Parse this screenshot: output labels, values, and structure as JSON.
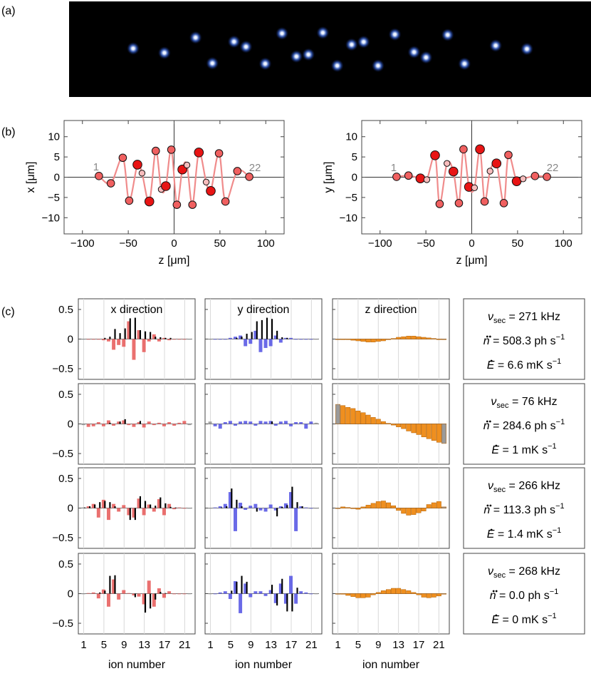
{
  "panel_labels": [
    "(a)",
    "(b)",
    "(c)"
  ],
  "image_a": {
    "background": "#000000",
    "spot_color": "#6fa0ff",
    "spot_count": 22
  },
  "chart_data": [
    {
      "type": "scatter",
      "id": "b-left",
      "title": "",
      "xlabel": "z [μm]",
      "ylabel": "x [μm]",
      "xlim": [
        -120,
        120
      ],
      "ylim": [
        -14,
        14
      ],
      "xticks": [
        -100,
        -50,
        0,
        50,
        100
      ],
      "yticks": [
        -10,
        -5,
        0,
        5,
        10
      ],
      "start_label": "1",
      "end_label": "22",
      "points": [
        {
          "z": -82,
          "v": 0.3,
          "shade": "mid"
        },
        {
          "z": -69,
          "v": -1.5,
          "shade": "mid"
        },
        {
          "z": -56,
          "v": 4.8,
          "shade": "mid"
        },
        {
          "z": -49,
          "v": -5.8,
          "shade": "mid"
        },
        {
          "z": -40,
          "v": 3.1,
          "shade": "dark"
        },
        {
          "z": -35,
          "v": 1.0,
          "shade": "light"
        },
        {
          "z": -27,
          "v": -6.0,
          "shade": "dark"
        },
        {
          "z": -20,
          "v": 6.5,
          "shade": "mid"
        },
        {
          "z": -14,
          "v": -3.0,
          "shade": "light"
        },
        {
          "z": -9,
          "v": -2.2,
          "shade": "dark"
        },
        {
          "z": -3,
          "v": 6.8,
          "shade": "mid"
        },
        {
          "z": 3,
          "v": -6.8,
          "shade": "mid"
        },
        {
          "z": 9,
          "v": 1.9,
          "shade": "dark"
        },
        {
          "z": 14,
          "v": 3.0,
          "shade": "light"
        },
        {
          "z": 20,
          "v": -6.8,
          "shade": "mid"
        },
        {
          "z": 27,
          "v": 6.1,
          "shade": "dark"
        },
        {
          "z": 35,
          "v": -1.2,
          "shade": "light"
        },
        {
          "z": 40,
          "v": -3.4,
          "shade": "dark"
        },
        {
          "z": 49,
          "v": 5.9,
          "shade": "mid"
        },
        {
          "z": 56,
          "v": -6.0,
          "shade": "mid"
        },
        {
          "z": 69,
          "v": 1.5,
          "shade": "mid"
        },
        {
          "z": 82,
          "v": 0.1,
          "shade": "mid"
        }
      ]
    },
    {
      "type": "scatter",
      "id": "b-right",
      "title": "",
      "xlabel": "z [μm]",
      "ylabel": "y [μm]",
      "xlim": [
        -120,
        120
      ],
      "ylim": [
        -14,
        14
      ],
      "xticks": [
        -100,
        -50,
        0,
        50,
        100
      ],
      "yticks": [
        -10,
        -5,
        0,
        5,
        10
      ],
      "start_label": "1",
      "end_label": "22",
      "points": [
        {
          "z": -82,
          "v": 0.1,
          "shade": "mid"
        },
        {
          "z": -69,
          "v": 0.4,
          "shade": "mid"
        },
        {
          "z": -56,
          "v": -0.3,
          "shade": "dark"
        },
        {
          "z": -49,
          "v": -0.6,
          "shade": "light"
        },
        {
          "z": -40,
          "v": 5.4,
          "shade": "dark"
        },
        {
          "z": -35,
          "v": -6.6,
          "shade": "mid"
        },
        {
          "z": -27,
          "v": 3.4,
          "shade": "light"
        },
        {
          "z": -20,
          "v": 1.4,
          "shade": "dark"
        },
        {
          "z": -14,
          "v": -6.4,
          "shade": "mid"
        },
        {
          "z": -9,
          "v": 6.9,
          "shade": "mid"
        },
        {
          "z": -3,
          "v": -2.4,
          "shade": "dark"
        },
        {
          "z": 3,
          "v": -2.6,
          "shade": "light"
        },
        {
          "z": 9,
          "v": 6.9,
          "shade": "dark"
        },
        {
          "z": 14,
          "v": -6.0,
          "shade": "mid"
        },
        {
          "z": 20,
          "v": 1.5,
          "shade": "light"
        },
        {
          "z": 27,
          "v": 3.4,
          "shade": "dark"
        },
        {
          "z": 35,
          "v": -6.4,
          "shade": "mid"
        },
        {
          "z": 40,
          "v": 5.5,
          "shade": "mid"
        },
        {
          "z": 49,
          "v": -1.0,
          "shade": "dark"
        },
        {
          "z": 56,
          "v": -0.4,
          "shade": "light"
        },
        {
          "z": 69,
          "v": 0.3,
          "shade": "mid"
        },
        {
          "z": 82,
          "v": 0.1,
          "shade": "mid"
        }
      ]
    }
  ],
  "mode_grid": {
    "type": "bar",
    "xlabel": "ion number",
    "xticks": [
      1,
      5,
      9,
      13,
      17,
      21
    ],
    "yticks": [
      -0.5,
      0,
      0.5
    ],
    "ylim": [
      -0.68,
      0.68
    ],
    "column_titles": [
      "x direction",
      "y direction",
      "z direction"
    ],
    "colors": {
      "x": "#e8605f",
      "y": "#5a5ae4",
      "z": "#ef8f1f",
      "reference": "#000000",
      "edge": "#9a9a9a"
    },
    "rows": [
      {
        "info": {
          "nu_label": "ν",
          "nu_sub": "sec",
          "nu_value": "= 271 kHz",
          "ndot_sym": "n",
          "ndot_value": "= 508.3 ph s",
          "edot_sym": "E",
          "edot_value": "= 6.6 mK s",
          "exp": "−1"
        },
        "x": {
          "main": [
            0,
            0,
            0,
            0,
            -0.02,
            -0.04,
            -0.18,
            -0.1,
            -0.13,
            0.3,
            -0.35,
            0.15,
            -0.22,
            -0.04,
            0.08,
            -0.04,
            0.02,
            -0.02,
            0,
            0,
            0,
            0
          ],
          "ref": [
            0,
            0,
            0,
            0,
            0.02,
            0.04,
            0.17,
            0.1,
            0.18,
            0.35,
            0.36,
            0.15,
            0.13,
            0.12,
            0.04,
            0.03,
            0.02,
            0.02,
            0,
            0,
            0,
            0
          ]
        },
        "y": {
          "main": [
            0,
            0,
            0,
            0,
            0.02,
            0.04,
            0.06,
            -0.12,
            -0.08,
            0.14,
            -0.22,
            -0.15,
            -0.12,
            0.06,
            -0.06,
            0.02,
            0.02,
            0,
            0,
            0,
            0,
            0
          ],
          "ref": [
            0,
            0,
            0,
            0,
            0,
            0.02,
            0.04,
            0.09,
            0.12,
            0.3,
            0.32,
            0.36,
            0.34,
            0.14,
            0.03,
            0.02,
            0,
            0,
            0,
            0,
            0,
            0
          ]
        },
        "z": {
          "main": [
            0,
            0,
            0,
            -0.02,
            -0.03,
            -0.04,
            -0.05,
            -0.05,
            -0.04,
            -0.03,
            -0.01,
            0.01,
            0.03,
            0.04,
            0.05,
            0.05,
            0.04,
            0.03,
            0.02,
            0.01,
            0,
            0
          ],
          "ref": [
            0,
            0,
            0,
            0,
            0,
            0,
            0,
            0,
            0,
            0,
            0,
            0,
            0,
            0,
            0,
            0,
            0,
            0,
            0,
            0,
            0,
            0
          ]
        }
      },
      {
        "info": {
          "nu_label": "ν",
          "nu_sub": "sec",
          "nu_value": "= 76 kHz",
          "ndot_sym": "n",
          "ndot_value": "= 284.6 ph s",
          "edot_sym": "E",
          "edot_value": "= 1 mK s",
          "exp": "−1"
        },
        "x": {
          "main": [
            -0.02,
            -0.05,
            -0.04,
            0.03,
            -0.04,
            0.06,
            -0.03,
            0.04,
            0.06,
            -0.02,
            -0.05,
            0.03,
            -0.06,
            0.04,
            -0.02,
            0.02,
            -0.04,
            0.03,
            -0.03,
            0.02,
            0.05,
            -0.02
          ],
          "ref": [
            0,
            0,
            0,
            0,
            0,
            0.02,
            0,
            0.04,
            0.08,
            0,
            0,
            0.05,
            0,
            0,
            0,
            0,
            0,
            0,
            0,
            0,
            0,
            0
          ]
        },
        "y": {
          "main": [
            0.04,
            -0.04,
            -0.08,
            0.03,
            0.05,
            -0.03,
            0.04,
            0.05,
            0.04,
            -0.03,
            0.05,
            0.04,
            0.05,
            -0.03,
            0.04,
            0.05,
            -0.04,
            0.03,
            0.03,
            -0.08,
            0.04,
            0.02
          ],
          "ref": [
            0,
            0,
            0,
            0,
            0,
            0,
            0,
            0,
            0,
            0,
            0,
            0,
            0.04,
            0,
            0,
            0,
            0,
            0,
            0,
            0,
            0,
            0
          ]
        },
        "z": {
          "main": [
            0.33,
            0.31,
            0.28,
            0.26,
            0.22,
            0.19,
            0.15,
            0.11,
            0.08,
            0.04,
            0.01,
            -0.02,
            -0.05,
            -0.08,
            -0.12,
            -0.15,
            -0.18,
            -0.22,
            -0.25,
            -0.28,
            -0.31,
            -0.33
          ],
          "ref": [
            0,
            0,
            0,
            0,
            0,
            0,
            0,
            0,
            0,
            0,
            0,
            0,
            0,
            0,
            0,
            0,
            0,
            0,
            0,
            0,
            0,
            0
          ]
        }
      },
      {
        "info": {
          "nu_label": "ν",
          "nu_sub": "sec",
          "nu_value": "= 266 kHz",
          "ndot_sym": "n",
          "ndot_value": "= 113.3 ph s",
          "edot_sym": "E",
          "edot_value": "= 1.4 mK s",
          "exp": "−1"
        },
        "x": {
          "main": [
            0.01,
            0.03,
            0.07,
            -0.16,
            0.14,
            -0.2,
            0.07,
            -0.06,
            0.05,
            -0.12,
            -0.16,
            0.16,
            -0.12,
            0.06,
            -0.06,
            0.15,
            -0.12,
            0.07,
            -0.02,
            0.01,
            0,
            0
          ],
          "ref": [
            0.01,
            0.03,
            0.06,
            0.1,
            0.12,
            0.1,
            0.03,
            0,
            0,
            -0.2,
            -0.2,
            0.2,
            0.12,
            0.06,
            0.04,
            0.18,
            0.08,
            0.02,
            0.01,
            0,
            0,
            0
          ]
        },
        "y": {
          "main": [
            0,
            0.01,
            0.03,
            0.07,
            0.27,
            -0.39,
            0.09,
            -0.03,
            0.04,
            0.07,
            -0.04,
            -0.06,
            0.06,
            -0.04,
            0.03,
            0.08,
            0.27,
            -0.39,
            0.03,
            0.01,
            0,
            0
          ],
          "ref": [
            0,
            0,
            0.01,
            0.03,
            0.33,
            0.14,
            0.03,
            0,
            0,
            -0.06,
            0,
            0,
            0,
            -0.14,
            0.02,
            0.05,
            0.36,
            0.1,
            0.03,
            0,
            0,
            0
          ]
        },
        "z": {
          "main": [
            0,
            0.02,
            0.01,
            -0.01,
            -0.02,
            0.02,
            0.05,
            0.08,
            0.11,
            0.12,
            0.09,
            0.04,
            -0.04,
            -0.09,
            -0.12,
            -0.11,
            -0.08,
            -0.05,
            0.06,
            0.09,
            0.11,
            0.02
          ],
          "ref": [
            0,
            0,
            0,
            0,
            0,
            0,
            0,
            0,
            0,
            0,
            0,
            0,
            0,
            0,
            0,
            0,
            0,
            0,
            0,
            0,
            0,
            0
          ]
        }
      },
      {
        "info": {
          "nu_label": "ν",
          "nu_sub": "sec",
          "nu_value": "= 268 kHz",
          "ndot_sym": "n",
          "ndot_value": "= 0.0 ph s",
          "edot_sym": "E",
          "edot_value": "= 0 mK s",
          "exp": "−1"
        },
        "x": {
          "main": [
            0,
            0.01,
            0.02,
            -0.08,
            0.07,
            -0.22,
            0.24,
            -0.1,
            0.06,
            0.01,
            -0.03,
            -0.05,
            -0.18,
            0.22,
            -0.22,
            0.09,
            -0.07,
            0.04,
            -0.01,
            0,
            0,
            0
          ],
          "ref": [
            0,
            0,
            0,
            0.02,
            0.05,
            0.3,
            0.31,
            0,
            0,
            0,
            -0.06,
            0,
            -0.32,
            -0.25,
            -0.1,
            0.03,
            0.01,
            0,
            0,
            0,
            0,
            0
          ]
        },
        "y": {
          "main": [
            0,
            0,
            0.02,
            0.04,
            -0.09,
            0.21,
            -0.33,
            0.17,
            -0.06,
            0.04,
            0.04,
            -0.04,
            0.06,
            -0.16,
            0.17,
            -0.17,
            0.3,
            -0.17,
            0.04,
            0.02,
            0,
            0
          ],
          "ref": [
            0,
            0,
            0,
            0,
            0.05,
            0.2,
            0.3,
            0.2,
            0,
            0,
            0,
            0,
            0.15,
            -0.2,
            0.25,
            -0.3,
            -0.3,
            0.1,
            0,
            0,
            0,
            0
          ]
        },
        "z": {
          "main": [
            0,
            -0.01,
            -0.03,
            -0.05,
            -0.07,
            -0.07,
            -0.06,
            -0.02,
            0.02,
            0.05,
            0.07,
            0.09,
            0.09,
            0.07,
            0.05,
            0.02,
            -0.02,
            -0.06,
            -0.07,
            -0.06,
            -0.04,
            -0.01
          ],
          "ref": [
            0,
            0,
            0,
            0,
            0,
            0,
            0,
            0,
            0,
            0,
            0,
            0,
            0,
            0,
            0,
            0,
            0,
            0,
            0,
            0,
            0,
            0
          ]
        }
      }
    ]
  }
}
